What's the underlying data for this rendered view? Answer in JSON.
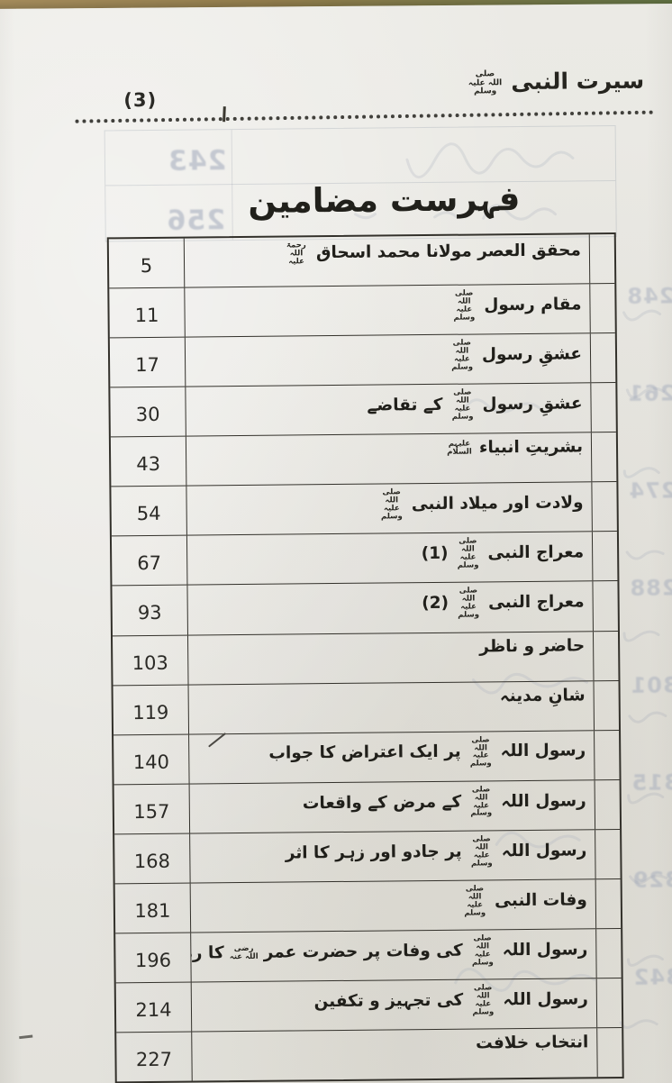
{
  "page": {
    "book_title_main": "سیرت النبی",
    "book_title_honorific": "صلی اللہ علیہ وسلم",
    "page_number": "(3)",
    "section_title": "فہرست مضامین"
  },
  "toc": {
    "rows": [
      {
        "segments": [
          [
            "t",
            "محقق العصر مولانا محمد اسحاق"
          ],
          [
            "h",
            "رحمۃ اللہ علیہ"
          ]
        ],
        "page": "5"
      },
      {
        "segments": [
          [
            "t",
            "مقام رسول"
          ],
          [
            "h",
            "صلی اللہ علیہ وسلم"
          ]
        ],
        "page": "11"
      },
      {
        "segments": [
          [
            "t",
            "عشقِ رسول"
          ],
          [
            "h",
            "صلی اللہ علیہ وسلم"
          ]
        ],
        "page": "17"
      },
      {
        "segments": [
          [
            "t",
            "عشقِ رسول"
          ],
          [
            "h",
            "صلی اللہ علیہ وسلم"
          ],
          [
            "t",
            "کے تقاضے"
          ]
        ],
        "page": "30"
      },
      {
        "segments": [
          [
            "t",
            "بشریتِ انبیاء"
          ],
          [
            "h",
            "علیہم السلام"
          ]
        ],
        "page": "43"
      },
      {
        "segments": [
          [
            "t",
            "ولادت اور میلاد النبی"
          ],
          [
            "h",
            "صلی اللہ علیہ وسلم"
          ]
        ],
        "page": "54"
      },
      {
        "segments": [
          [
            "t",
            "معراج النبی"
          ],
          [
            "h",
            "صلی اللہ علیہ وسلم"
          ],
          [
            "t",
            "(1)"
          ]
        ],
        "page": "67"
      },
      {
        "segments": [
          [
            "t",
            "معراج النبی"
          ],
          [
            "h",
            "صلی اللہ علیہ وسلم"
          ],
          [
            "t",
            "(2)"
          ]
        ],
        "page": "93"
      },
      {
        "segments": [
          [
            "t",
            "حاضر و ناظر"
          ]
        ],
        "page": "103"
      },
      {
        "segments": [
          [
            "t",
            "شانِ مدینہ"
          ]
        ],
        "page": "119"
      },
      {
        "segments": [
          [
            "t",
            "رسول اللہ"
          ],
          [
            "h",
            "صلی اللہ علیہ وسلم"
          ],
          [
            "t",
            "پر ایک اعتراض کا جواب"
          ]
        ],
        "page": "140"
      },
      {
        "segments": [
          [
            "t",
            "رسول اللہ"
          ],
          [
            "h",
            "صلی اللہ علیہ وسلم"
          ],
          [
            "t",
            "کے مرض کے واقعات"
          ]
        ],
        "page": "157"
      },
      {
        "segments": [
          [
            "t",
            "رسول اللہ"
          ],
          [
            "h",
            "صلی اللہ علیہ وسلم"
          ],
          [
            "t",
            "پر جادو اور زہر کا اثر"
          ]
        ],
        "page": "168"
      },
      {
        "segments": [
          [
            "t",
            "وفات النبی"
          ],
          [
            "h",
            "صلی اللہ علیہ وسلم"
          ]
        ],
        "page": "181"
      },
      {
        "segments": [
          [
            "t",
            "رسول اللہ"
          ],
          [
            "h",
            "صلی اللہ علیہ وسلم"
          ],
          [
            "t",
            "کی وفات پر حضرت عمر"
          ],
          [
            "h",
            "رضی اللہ عنہ"
          ],
          [
            "t",
            "کا ردِ عمل"
          ]
        ],
        "page": "196"
      },
      {
        "segments": [
          [
            "t",
            "رسول اللہ"
          ],
          [
            "h",
            "صلی اللہ علیہ وسلم"
          ],
          [
            "t",
            "کی تجہیز و تکفین"
          ]
        ],
        "page": "214"
      },
      {
        "segments": [
          [
            "t",
            "انتخاب خلافت"
          ]
        ],
        "page": "227"
      }
    ]
  },
  "bleedthrough": {
    "top_numbers": [
      "243",
      "256"
    ],
    "margin_numbers": [
      "248",
      "261",
      "274",
      "288",
      "301",
      "315",
      "329",
      "342"
    ]
  },
  "colors": {
    "paper": "#e9e8e3",
    "ink": "#201f1a",
    "table_border": "#33312b",
    "ghost": "#99a2b6",
    "background_tan": "#a98f5e",
    "background_green": "#53713f"
  }
}
